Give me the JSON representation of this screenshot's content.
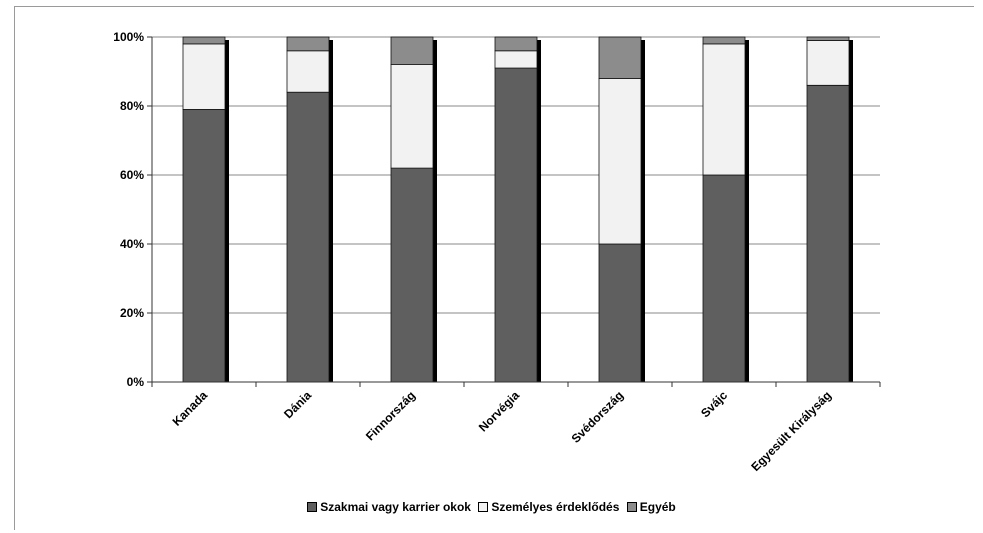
{
  "chart_data": {
    "type": "bar",
    "stacked": true,
    "categories": [
      "Kanada",
      "Dánia",
      "Finnország",
      "Norvégia",
      "Svédország",
      "Svájc",
      "Egyesült Királyság"
    ],
    "series": [
      {
        "name": "Szakmai vagy karrier okok",
        "color": "#5f5f5f",
        "values": [
          79,
          84,
          62,
          91,
          40,
          60,
          86
        ]
      },
      {
        "name": "Személyes érdeklődés",
        "color": "#f2f2f2",
        "values": [
          19,
          12,
          30,
          5,
          48,
          38,
          13
        ]
      },
      {
        "name": "Egyéb",
        "color": "#8c8c8c",
        "values": [
          2,
          4,
          8,
          4,
          12,
          2,
          1
        ]
      }
    ],
    "yticks": [
      "0%",
      "20%",
      "40%",
      "60%",
      "80%",
      "100%"
    ],
    "ylim": [
      0,
      100
    ],
    "grid": true,
    "legend_position": "bottom"
  }
}
